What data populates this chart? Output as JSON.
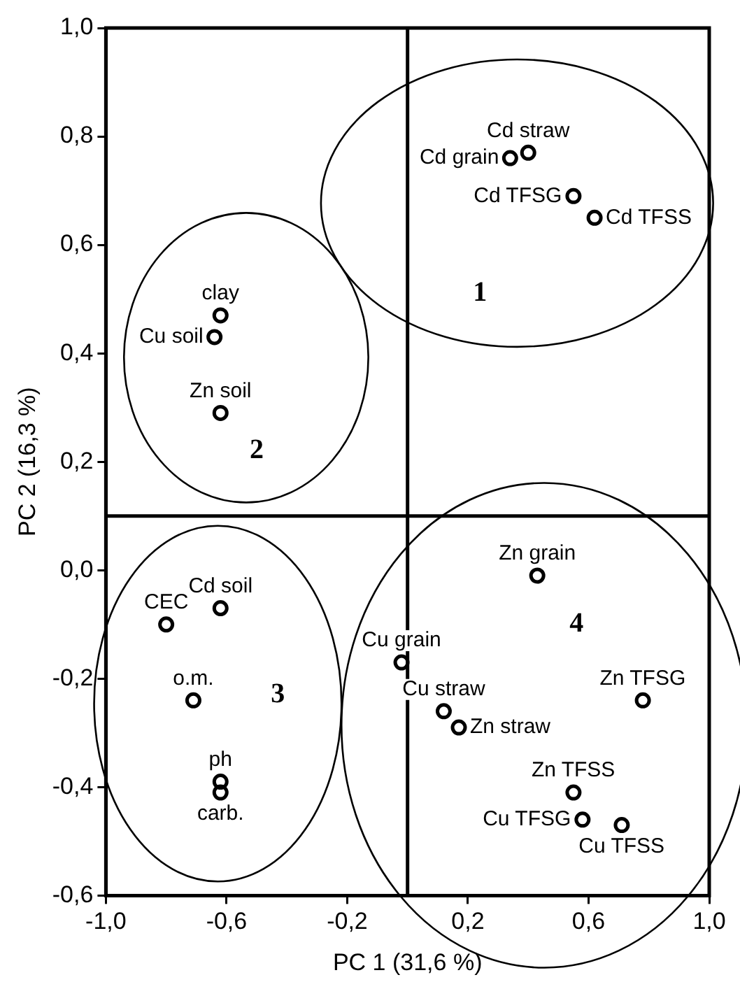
{
  "chart_data": {
    "type": "scatter",
    "xlabel": "PC 1 (31,6 %)",
    "ylabel": "PC 2 (16,3 %)",
    "xlim": [
      -1.0,
      1.0
    ],
    "ylim": [
      -0.6,
      1.0
    ],
    "xticks": [
      {
        "value": -1.0,
        "label": "-1,0"
      },
      {
        "value": -0.6,
        "label": "-0,6"
      },
      {
        "value": -0.2,
        "label": "-0,2"
      },
      {
        "value": 0.2,
        "label": "0,2"
      },
      {
        "value": 0.6,
        "label": "0,6"
      },
      {
        "value": 1.0,
        "label": "1,0"
      }
    ],
    "yticks": [
      {
        "value": -0.6,
        "label": "-0,6"
      },
      {
        "value": -0.4,
        "label": "-0,4"
      },
      {
        "value": -0.2,
        "label": "-0,2"
      },
      {
        "value": 0.0,
        "label": "0,0"
      },
      {
        "value": 0.2,
        "label": "0,2"
      },
      {
        "value": 0.4,
        "label": "0,4"
      },
      {
        "value": 0.6,
        "label": "0,6"
      },
      {
        "value": 0.8,
        "label": "0,8"
      },
      {
        "value": 1.0,
        "label": "1,0"
      }
    ],
    "grid": false,
    "legend": false,
    "marker": "circle",
    "ref_lines": [
      {
        "axis": "x",
        "value": 0,
        "color": "#000000"
      },
      {
        "axis": "y",
        "value": 0.1,
        "color": "#000000"
      }
    ],
    "annotations": [
      "1",
      "2",
      "3",
      "4"
    ],
    "series": [
      {
        "name": "Cd grain",
        "color": "#000000",
        "x": [
          0.34
        ],
        "values": [
          0.76
        ]
      },
      {
        "name": "Cd straw",
        "color": "#000000",
        "x": [
          0.4
        ],
        "values": [
          0.77
        ]
      },
      {
        "name": "Cd TFSG",
        "color": "#000000",
        "x": [
          0.55
        ],
        "values": [
          0.69
        ]
      },
      {
        "name": "Cd TFSS",
        "color": "#000000",
        "x": [
          0.62
        ],
        "values": [
          0.65
        ]
      },
      {
        "name": "clay",
        "color": "#000000",
        "x": [
          -0.62
        ],
        "values": [
          0.47
        ]
      },
      {
        "name": "Cu soil",
        "color": "#000000",
        "x": [
          -0.64
        ],
        "values": [
          0.43
        ]
      },
      {
        "name": "Zn soil",
        "color": "#000000",
        "x": [
          -0.62
        ],
        "values": [
          0.29
        ]
      },
      {
        "name": "Zn grain",
        "color": "#000000",
        "x": [
          0.43
        ],
        "values": [
          -0.01
        ]
      },
      {
        "name": "Cd soil",
        "color": "#000000",
        "x": [
          -0.62
        ],
        "values": [
          -0.07
        ]
      },
      {
        "name": "CEC",
        "color": "#000000",
        "x": [
          -0.8
        ],
        "values": [
          -0.1
        ]
      },
      {
        "name": "Cu grain",
        "color": "#000000",
        "x": [
          -0.02
        ],
        "values": [
          -0.17
        ]
      },
      {
        "name": "o.m.",
        "color": "#000000",
        "x": [
          -0.71
        ],
        "values": [
          -0.24
        ]
      },
      {
        "name": "Zn TFSG",
        "color": "#000000",
        "x": [
          0.78
        ],
        "values": [
          -0.24
        ]
      },
      {
        "name": "Cu straw",
        "color": "#000000",
        "x": [
          0.12
        ],
        "values": [
          -0.26
        ]
      },
      {
        "name": "Zn straw",
        "color": "#000000",
        "x": [
          0.17
        ],
        "values": [
          -0.29
        ]
      },
      {
        "name": "ph",
        "color": "#000000",
        "x": [
          -0.62
        ],
        "values": [
          -0.39
        ]
      },
      {
        "name": "carb.",
        "color": "#000000",
        "x": [
          -0.62
        ],
        "values": [
          -0.41
        ]
      },
      {
        "name": "Zn TFSS",
        "color": "#000000",
        "x": [
          0.55
        ],
        "values": [
          -0.41
        ]
      },
      {
        "name": "Cu TFSG",
        "color": "#000000",
        "x": [
          0.58
        ],
        "values": [
          -0.46
        ]
      },
      {
        "name": "Cu TFSS",
        "color": "#000000",
        "x": [
          0.71
        ],
        "values": [
          -0.47
        ]
      }
    ]
  }
}
